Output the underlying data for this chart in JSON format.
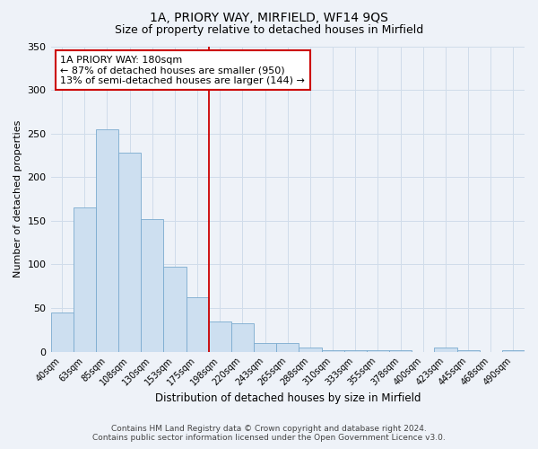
{
  "title": "1A, PRIORY WAY, MIRFIELD, WF14 9QS",
  "subtitle": "Size of property relative to detached houses in Mirfield",
  "xlabel": "Distribution of detached houses by size in Mirfield",
  "ylabel": "Number of detached properties",
  "bar_labels": [
    "40sqm",
    "63sqm",
    "85sqm",
    "108sqm",
    "130sqm",
    "153sqm",
    "175sqm",
    "198sqm",
    "220sqm",
    "243sqm",
    "265sqm",
    "288sqm",
    "310sqm",
    "333sqm",
    "355sqm",
    "378sqm",
    "400sqm",
    "423sqm",
    "445sqm",
    "468sqm",
    "490sqm"
  ],
  "bar_heights": [
    45,
    165,
    255,
    228,
    152,
    97,
    62,
    35,
    33,
    10,
    10,
    5,
    2,
    2,
    2,
    2,
    0,
    5,
    2,
    0,
    2
  ],
  "bar_color": "#cddff0",
  "bar_edge_color": "#7aabcf",
  "vline_x_idx": 6.5,
  "vline_color": "#cc0000",
  "annotation_text": "1A PRIORY WAY: 180sqm\n← 87% of detached houses are smaller (950)\n13% of semi-detached houses are larger (144) →",
  "annotation_box_color": "#ffffff",
  "annotation_box_edge": "#cc0000",
  "ylim": [
    0,
    350
  ],
  "yticks": [
    0,
    50,
    100,
    150,
    200,
    250,
    300,
    350
  ],
  "footer_line1": "Contains HM Land Registry data © Crown copyright and database right 2024.",
  "footer_line2": "Contains public sector information licensed under the Open Government Licence v3.0.",
  "grid_color": "#d0dcea",
  "background_color": "#eef2f8",
  "title_fontsize": 10,
  "subtitle_fontsize": 9
}
